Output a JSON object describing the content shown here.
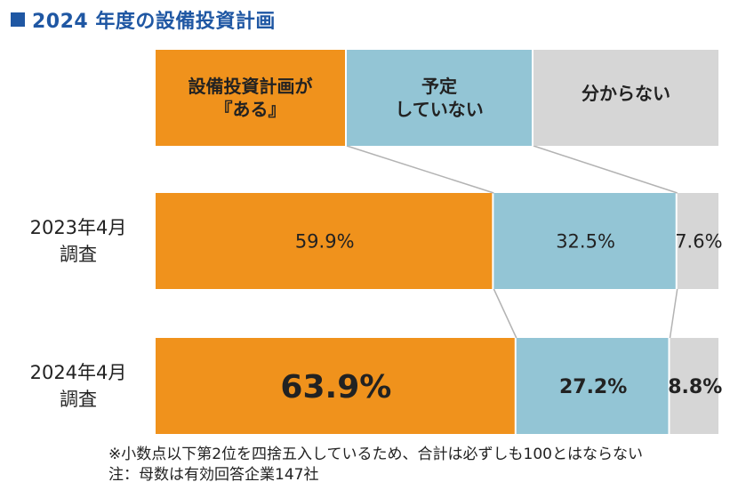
{
  "title": "2024 年度の設備投資計画",
  "colors": {
    "title": "#1f57a3",
    "planned": "#f0921c",
    "no_plan": "#93c5d5",
    "unknown": "#d6d6d6",
    "connector": "#b3b3b3",
    "bar_border": "#ffffff"
  },
  "chart_data": {
    "type": "bar",
    "orientation": "horizontal",
    "stacked": true,
    "unit": "%",
    "xlim": [
      0,
      100
    ],
    "categories": [
      {
        "label_line1": "2023年4月",
        "label_line2": "調査"
      },
      {
        "label_line1": "2024年4月",
        "label_line2": "調査"
      }
    ],
    "series": [
      {
        "name": "設備投資計画が『ある』",
        "legend_line1": "設備投資計画が",
        "legend_line2": "『ある』",
        "color_key": "planned",
        "values": [
          59.9,
          63.9
        ],
        "labels": [
          "59.9%",
          "63.9%"
        ]
      },
      {
        "name": "予定していない",
        "legend_line1": "予定",
        "legend_line2": "していない",
        "color_key": "no_plan",
        "values": [
          32.5,
          27.2
        ],
        "labels": [
          "32.5%",
          "27.2%"
        ]
      },
      {
        "name": "分からない",
        "legend_line1": "分からない",
        "legend_line2": "",
        "color_key": "unknown",
        "values": [
          7.6,
          8.8
        ],
        "labels": [
          "7.6%",
          "8.8%"
        ]
      }
    ],
    "legend_position": "top",
    "grid": false
  },
  "footnotes": [
    "※小数点以下第2位を四捨五入しているため、合計は必ずしも100とはならない",
    "注：母数は有効回答企業147社"
  ]
}
